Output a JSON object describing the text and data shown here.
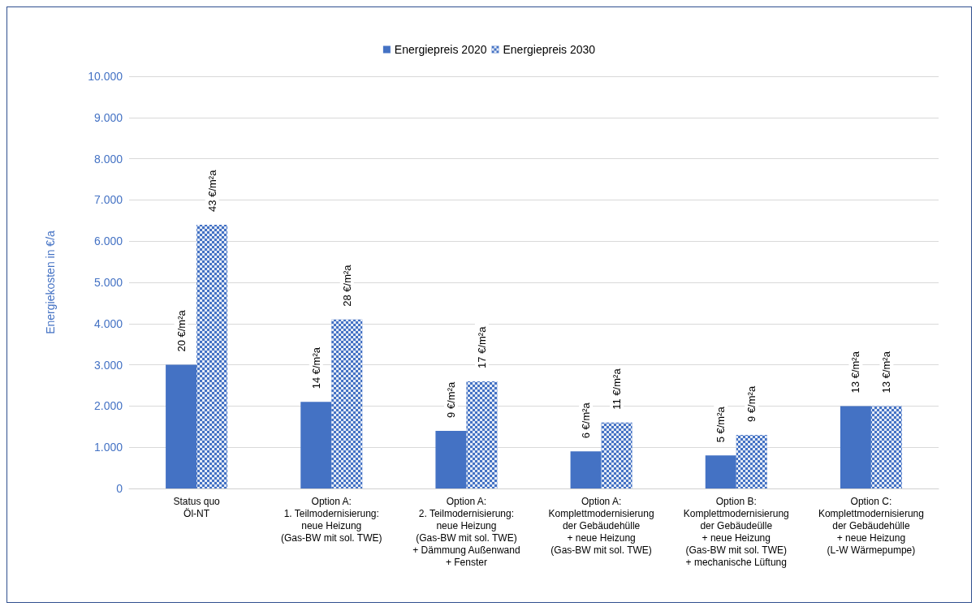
{
  "chart_data": {
    "type": "bar",
    "ylabel": "Energiekosten in €/a",
    "categories": [
      "Status quo\nÖl-NT",
      "Option A:\n1. Teilmodernisierung:\nneue Heizung\n(Gas-BW mit sol. TWE)",
      "Option A:\n2. Teilmodernisierung:\nneue Heizung\n(Gas-BW mit sol. TWE)\n+ Dämmung Außenwand\n+ Fenster",
      "Option A:\nKomplettmodernisierung\nder Gebäudehülle\n+ neue Heizung\n(Gas-BW mit sol. TWE)",
      "Option B:\nKomplettmodernisierung\nder Gebäudeülle\n+ neue Heizung\n(Gas-BW mit sol. TWE)\n+ mechanische Lüftung",
      "Option C:\nKomplettmodernisierung\nder Gebäudehülle\n+ neue Heizung\n(L-W Wärmepumpe)"
    ],
    "series": [
      {
        "name": "Energiepreis 2020",
        "color": "#4472c4",
        "values": [
          3000,
          2100,
          1400,
          900,
          800,
          2000
        ]
      },
      {
        "name": "Energiepreis 2030",
        "color": "#4472c4",
        "values": [
          6400,
          4100,
          2600,
          1600,
          1300,
          2000
        ]
      }
    ],
    "annotations": [
      {
        "text": "20 €/m²a",
        "x": "Status quo\nÖl-NT",
        "y": 3000
      },
      {
        "text": "43 €/m²a",
        "x": "Status quo\nÖl-NT",
        "y": 6400
      },
      {
        "text": "14 €/m²a",
        "x": "Option A:\n1. Teilmodernisierung:\nneue Heizung\n(Gas-BW mit sol. TWE)",
        "y": 2100
      },
      {
        "text": "28 €/m²a",
        "x": "Option A:\n1. Teilmodernisierung:\nneue Heizung\n(Gas-BW mit sol. TWE)",
        "y": 4100
      },
      {
        "text": "9 €/m²a",
        "x": "Option A:\n2. Teilmodernisierung:\nneue Heizung\n(Gas-BW mit sol. TWE)\n+ Dämmung Außenwand\n+ Fenster",
        "y": 1400
      },
      {
        "text": "17 €/m²a",
        "x": "Option A:\n2. Teilmodernisierung:\nneue Heizung\n(Gas-BW mit sol. TWE)\n+ Dämmung Außenwand\n+ Fenster",
        "y": 2600
      },
      {
        "text": "6 €/m²a",
        "x": "Option A:\nKomplettmodernisierung\nder Gebäudehülle\n+ neue Heizung\n(Gas-BW mit sol. TWE)",
        "y": 900
      },
      {
        "text": "11 €/m²a",
        "x": "Option A:\nKomplettmodernisierung\nder Gebäudehülle\n+ neue Heizung\n(Gas-BW mit sol. TWE)",
        "y": 1600
      },
      {
        "text": "5 €/m²a",
        "x": "Option B:\nKomplettmodernisierung\nder Gebäudeülle\n+ neue Heizung\n(Gas-BW mit sol. TWE)\n+ mechanische Lüftung",
        "y": 800
      },
      {
        "text": "9 €/m²a",
        "x": "Option B:\nKomplettmodernisierung\nder Gebäudeülle\n+ neue Heizung\n(Gas-BW mit sol. TWE)\n+ mechanische Lüftung",
        "y": 1300
      },
      {
        "text": "13 €/m²a",
        "x": "Option C:\nKomplettmodernisierung\nder Gebäudehülle\n+ neue Heizung\n(L-W Wärmepumpe)",
        "y": 2000
      },
      {
        "text": "13 €/m²a",
        "x": "Option C:\nKomplettmodernisierung\nder Gebäudehülle\n+ neue Heizung\n(L-W Wärmepumpe)",
        "y": 2000
      }
    ],
    "ylim": [
      0,
      10000
    ],
    "yticks": [
      {
        "value": 0,
        "label": "0"
      },
      {
        "value": 1000,
        "label": "1.000"
      },
      {
        "value": 2000,
        "label": "2.000"
      },
      {
        "value": 3000,
        "label": "3.000"
      },
      {
        "value": 4000,
        "label": "4.000"
      },
      {
        "value": 5000,
        "label": "5.000"
      },
      {
        "value": 6000,
        "label": "6.000"
      },
      {
        "value": 7000,
        "label": "7.000"
      },
      {
        "value": 8000,
        "label": "8.000"
      },
      {
        "value": 9000,
        "label": "9.000"
      },
      {
        "value": 10000,
        "label": "10.000"
      }
    ],
    "grid": "y",
    "legend": "top"
  }
}
